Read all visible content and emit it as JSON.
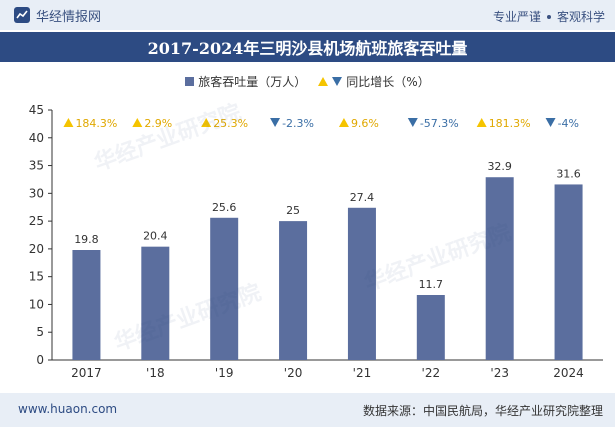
{
  "header": {
    "brand": "华经情报网",
    "tagline_left": "专业严谨",
    "tagline_right": "客观科学"
  },
  "title": "2017-2024年三明沙县机场航班旅客吞吐量",
  "legend": {
    "series1": "旅客吞吐量（万人）",
    "series2": "同比增长（%）"
  },
  "watermark": "华经产业研究院",
  "footer": {
    "left": "www.huaon.com",
    "right": "数据来源：中国民航局，华经产业研究院整理"
  },
  "colors": {
    "bar": "#5b6e9e",
    "up": "#f5c400",
    "down": "#3a6ea5",
    "title_bg": "#2d4b83"
  },
  "chart_data": {
    "type": "bar",
    "categories": [
      "2017",
      "'18",
      "'19",
      "'20",
      "'21",
      "'22",
      "'23",
      "2024"
    ],
    "series": [
      {
        "name": "旅客吞吐量（万人）",
        "values": [
          19.8,
          20.4,
          25.6,
          25,
          27.4,
          11.7,
          32.9,
          31.6
        ]
      }
    ],
    "value_labels": [
      "19.8",
      "20.4",
      "25.6",
      "25",
      "27.4",
      "11.7",
      "32.9",
      "31.6"
    ],
    "growth": {
      "name": "同比增长（%）",
      "labels": [
        "184.3%",
        "2.9%",
        "25.3%",
        "-2.3%",
        "9.6%",
        "-57.3%",
        "181.3%",
        "-4%"
      ],
      "direction": [
        "up",
        "up",
        "up",
        "down",
        "up",
        "down",
        "up",
        "down"
      ]
    },
    "ylim": [
      0,
      45
    ],
    "yticks": [
      "0",
      "5",
      "10",
      "15",
      "20",
      "25",
      "30",
      "35",
      "40",
      "45"
    ],
    "grid": false
  }
}
